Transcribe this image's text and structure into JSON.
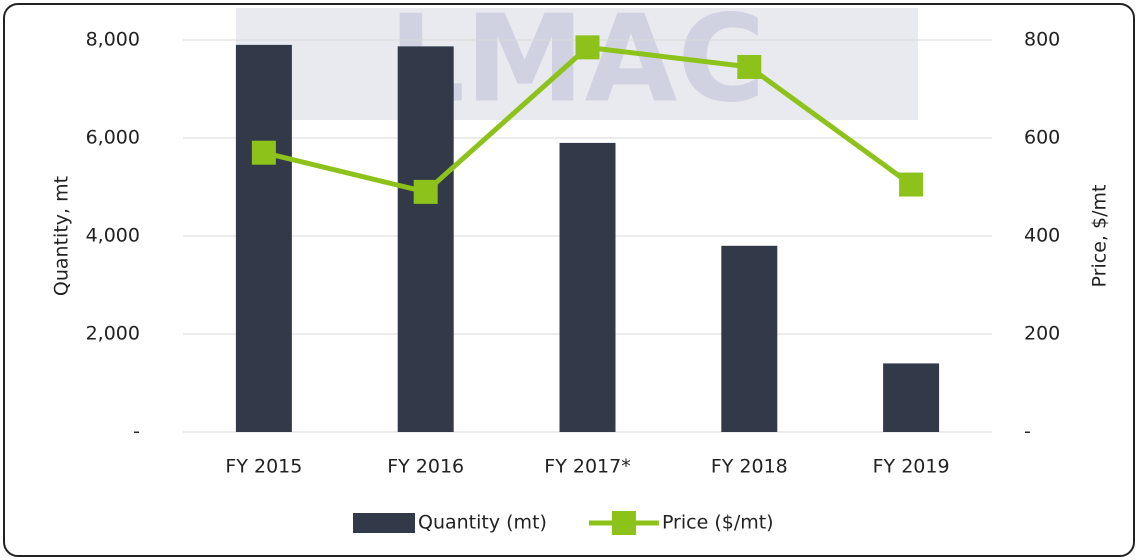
{
  "chart_data": {
    "type": "bar",
    "watermark": "LMAC",
    "categories": [
      "FY 2015",
      "FY 2016",
      "FY 2017*",
      "FY 2018",
      "FY 2019"
    ],
    "series": [
      {
        "name": "Quantity (mt)",
        "type": "bar",
        "color": "#323a4a",
        "values": [
          7900,
          7870,
          5900,
          3800,
          1400
        ]
      },
      {
        "name": "Price ($/mt)",
        "type": "line",
        "axis": "y2",
        "color": "#8cc21a",
        "values": [
          570,
          490,
          785,
          745,
          505
        ]
      }
    ],
    "ylabel": "Quantity, mt",
    "y2label": "Price, $/mt",
    "ylim": [
      0,
      8000
    ],
    "yticks": [
      {
        "value": 0,
        "label": "-"
      },
      {
        "value": 2000,
        "label": "2,000"
      },
      {
        "value": 4000,
        "label": "4,000"
      },
      {
        "value": 6000,
        "label": "6,000"
      },
      {
        "value": 8000,
        "label": "8,000"
      }
    ],
    "y2lim": [
      0,
      800
    ],
    "y2ticks": [
      {
        "value": 0,
        "label": "-"
      },
      200,
      400,
      600,
      800
    ],
    "grid": true,
    "legend": "bottom"
  }
}
